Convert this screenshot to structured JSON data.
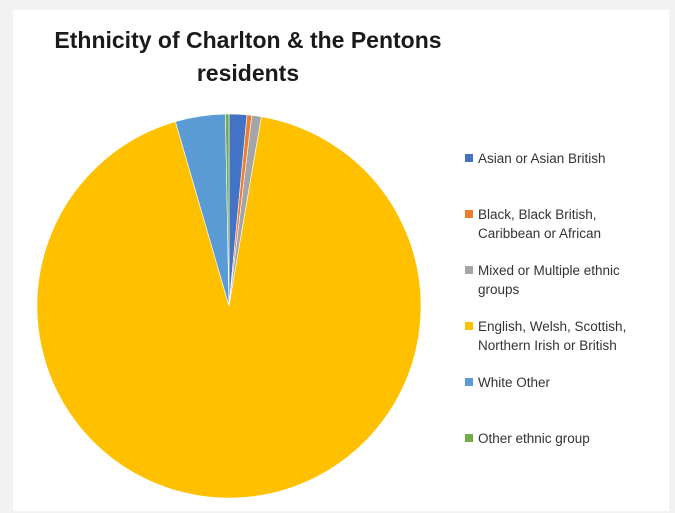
{
  "chart_data": {
    "type": "pie",
    "title_lines": [
      "Ethnicity of Charlton & the Pentons",
      "residents"
    ],
    "slices": [
      {
        "label": "Asian or Asian British",
        "value": 1.5,
        "color": "#4472c4"
      },
      {
        "label": "Black, Black British,\nCaribbean or African",
        "value": 0.4,
        "color": "#ed7d31"
      },
      {
        "label": "Mixed or Multiple ethnic\ngroups",
        "value": 0.8,
        "color": "#a5a5a5"
      },
      {
        "label": " English, Welsh, Scottish,\nNorthern Irish or British",
        "value": 92.8,
        "color": "#ffc000"
      },
      {
        "label": "White Other",
        "value": 4.2,
        "color": "#5b9bd5"
      },
      {
        "label": "Other ethnic group",
        "value": 0.3,
        "color": "#70ad47"
      }
    ],
    "legend_position": "right"
  }
}
